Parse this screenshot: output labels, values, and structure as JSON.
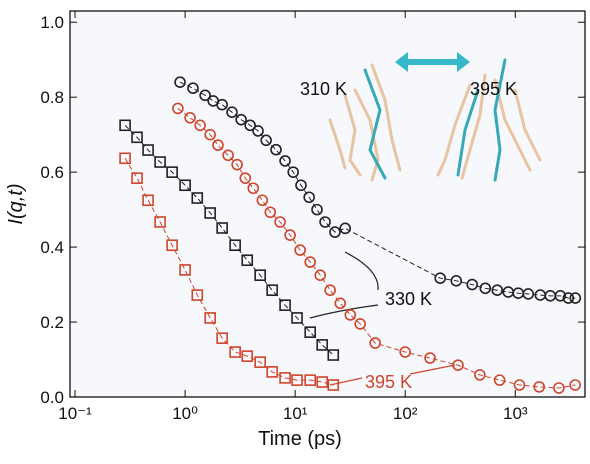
{
  "chart_data": {
    "type": "scatter",
    "x_label": "Time (ps)",
    "y_label": "I(q,t)",
    "xscale": "log",
    "xlim": [
      0.09,
      4300
    ],
    "ylim": [
      0,
      1.03
    ],
    "xticks": [
      {
        "value": 0.1,
        "label": "10⁻¹"
      },
      {
        "value": 1,
        "label": "10⁰"
      },
      {
        "value": 10,
        "label": "10¹"
      },
      {
        "value": 100,
        "label": "10²"
      },
      {
        "value": 1000,
        "label": "10³"
      }
    ],
    "yticks": [
      {
        "value": 0,
        "label": "0.0"
      },
      0.2,
      0.4,
      0.6,
      0.8,
      {
        "value": 1,
        "label": "1.0"
      }
    ],
    "series": [
      {
        "color": "#222222",
        "marker": "circle",
        "x": [
          0.9,
          1.18,
          1.52,
          1.8,
          2.17,
          2.67,
          3.23,
          3.9,
          4.6,
          5.45,
          6.7,
          8.1,
          9.6,
          11.3,
          13.4,
          15.8,
          18.7,
          23,
          28.5,
          208,
          291,
          406,
          534,
          686,
          863,
          1064,
          1312,
          1687,
          2080,
          2564,
          3035,
          3510
        ],
        "values": [
          0.84,
          0.824,
          0.805,
          0.79,
          0.78,
          0.76,
          0.74,
          0.725,
          0.71,
          0.685,
          0.66,
          0.63,
          0.6,
          0.565,
          0.533,
          0.5,
          0.467,
          0.44,
          0.45,
          0.317,
          0.31,
          0.3,
          0.29,
          0.285,
          0.28,
          0.277,
          0.275,
          0.272,
          0.27,
          0.27,
          0.264,
          0.264
        ]
      },
      {
        "color": "#d0442c",
        "marker": "circle",
        "x": [
          0.86,
          1.11,
          1.37,
          1.69,
          1.99,
          2.46,
          2.97,
          3.52,
          4.16,
          5.03,
          5.94,
          7.3,
          9,
          11.1,
          13.7,
          16.9,
          20.8,
          25.7,
          31.7,
          39,
          53.3,
          99.8,
          168,
          302,
          477,
          721,
          1091,
          1650,
          2490,
          3500
        ],
        "values": [
          0.77,
          0.745,
          0.725,
          0.7,
          0.672,
          0.645,
          0.62,
          0.584,
          0.557,
          0.525,
          0.493,
          0.467,
          0.432,
          0.392,
          0.36,
          0.325,
          0.285,
          0.25,
          0.219,
          0.195,
          0.144,
          0.12,
          0.104,
          0.085,
          0.059,
          0.045,
          0.032,
          0.027,
          0.024,
          0.032
        ]
      },
      {
        "color": "#222222",
        "marker": "square",
        "x": [
          0.285,
          0.366,
          0.461,
          0.593,
          0.762,
          1,
          1.29,
          1.69,
          2.17,
          2.85,
          3.67,
          4.81,
          6.18,
          8.1,
          10.4,
          13.7,
          17.6,
          22.2
        ],
        "values": [
          0.725,
          0.693,
          0.659,
          0.627,
          0.6,
          0.565,
          0.531,
          0.491,
          0.451,
          0.405,
          0.365,
          0.325,
          0.285,
          0.245,
          0.211,
          0.173,
          0.139,
          0.112
        ]
      },
      {
        "color": "#d0442c",
        "marker": "square",
        "x": [
          0.285,
          0.366,
          0.461,
          0.593,
          0.762,
          1,
          1.29,
          1.69,
          2.17,
          2.85,
          3.67,
          4.81,
          6.18,
          8.1,
          10.4,
          13.7,
          17.6,
          22.2
        ],
        "values": [
          0.637,
          0.584,
          0.525,
          0.467,
          0.405,
          0.339,
          0.272,
          0.211,
          0.157,
          0.12,
          0.109,
          0.093,
          0.067,
          0.051,
          0.045,
          0.045,
          0.04,
          0.032
        ]
      }
    ],
    "annotations": [
      {
        "text": "310 K",
        "color": "#111111"
      },
      {
        "text": "395 K",
        "color": "#111111"
      },
      {
        "text": "330 K",
        "color": "#111111"
      },
      {
        "text": "395 K",
        "color": "#d0442c"
      }
    ]
  }
}
